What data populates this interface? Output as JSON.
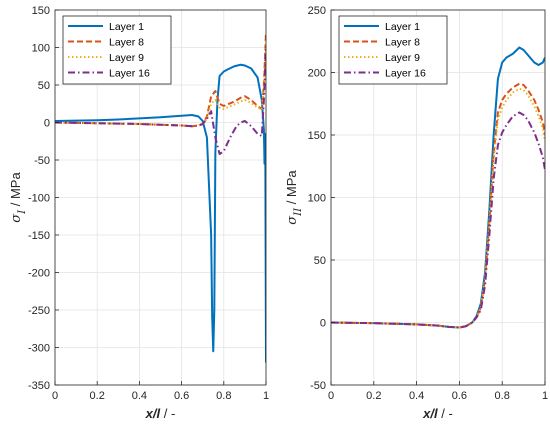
{
  "chart_data": [
    {
      "type": "line",
      "xlabel": "x/l / -",
      "ylabel": "σ_I / MPa",
      "xlim": [
        0,
        1
      ],
      "ylim": [
        -350,
        150
      ],
      "xticks": [
        0,
        0.2,
        0.4,
        0.6,
        0.8,
        1
      ],
      "yticks": [
        -350,
        -300,
        -250,
        -200,
        -150,
        -100,
        -50,
        0,
        50,
        100,
        150
      ],
      "grid": true,
      "legend_position": "top-left",
      "series": [
        {
          "name": "Layer 1",
          "color": "#0072bd",
          "style": "solid",
          "x": [
            0,
            0.1,
            0.2,
            0.3,
            0.4,
            0.5,
            0.6,
            0.65,
            0.68,
            0.7,
            0.72,
            0.74,
            0.745,
            0.75,
            0.755,
            0.76,
            0.77,
            0.78,
            0.8,
            0.82,
            0.85,
            0.88,
            0.9,
            0.93,
            0.96,
            0.98,
            0.99,
            0.993,
            0.995,
            0.997,
            1.0
          ],
          "y": [
            2,
            2.5,
            3,
            4,
            5.5,
            7,
            9,
            10,
            8,
            2,
            -20,
            -150,
            -260,
            -305,
            -250,
            -40,
            30,
            62,
            68,
            71,
            75,
            77,
            76,
            72,
            60,
            30,
            -10,
            -55,
            -15,
            -60,
            -320
          ]
        },
        {
          "name": "Layer 8",
          "color": "#d95319",
          "style": "dashed",
          "x": [
            0,
            0.1,
            0.2,
            0.3,
            0.4,
            0.5,
            0.6,
            0.65,
            0.68,
            0.7,
            0.72,
            0.74,
            0.76,
            0.78,
            0.8,
            0.85,
            0.88,
            0.9,
            0.93,
            0.96,
            0.98,
            0.99,
            1.0
          ],
          "y": [
            0,
            -0.5,
            -1,
            -1.5,
            -2,
            -3,
            -4,
            -5,
            -4,
            -2,
            8,
            35,
            42,
            25,
            22,
            28,
            33,
            35,
            30,
            22,
            18,
            50,
            120
          ]
        },
        {
          "name": "Layer 9",
          "color": "#edb120",
          "style": "dotted",
          "x": [
            0,
            0.1,
            0.2,
            0.3,
            0.4,
            0.5,
            0.6,
            0.65,
            0.68,
            0.7,
            0.72,
            0.74,
            0.76,
            0.78,
            0.8,
            0.85,
            0.88,
            0.9,
            0.93,
            0.96,
            0.98,
            0.99,
            1.0
          ],
          "y": [
            0,
            -0.5,
            -1,
            -1.5,
            -2,
            -3,
            -4,
            -5,
            -4,
            -2,
            5,
            25,
            30,
            20,
            18,
            24,
            28,
            30,
            26,
            20,
            17,
            45,
            110
          ]
        },
        {
          "name": "Layer 16",
          "color": "#7e2f8e",
          "style": "dashdot",
          "x": [
            0,
            0.1,
            0.2,
            0.3,
            0.4,
            0.5,
            0.6,
            0.65,
            0.68,
            0.7,
            0.72,
            0.74,
            0.76,
            0.78,
            0.8,
            0.83,
            0.86,
            0.88,
            0.9,
            0.93,
            0.96,
            0.98,
            0.99,
            1.0
          ],
          "y": [
            0,
            -0.5,
            -1,
            -1.5,
            -2,
            -3,
            -4,
            -5,
            -4,
            -2,
            5,
            15,
            -20,
            -42,
            -38,
            -20,
            -5,
            0,
            2,
            -5,
            -15,
            -18,
            30,
            100
          ]
        }
      ]
    },
    {
      "type": "line",
      "xlabel": "x/l / -",
      "ylabel": "σ_II / MPa",
      "xlim": [
        0,
        1
      ],
      "ylim": [
        -50,
        250
      ],
      "xticks": [
        0,
        0.2,
        0.4,
        0.6,
        0.8,
        1
      ],
      "yticks": [
        -50,
        0,
        50,
        100,
        150,
        200,
        250
      ],
      "grid": true,
      "legend_position": "top-left",
      "series": [
        {
          "name": "Layer 1",
          "color": "#0072bd",
          "style": "solid",
          "x": [
            0,
            0.1,
            0.2,
            0.3,
            0.4,
            0.5,
            0.55,
            0.6,
            0.63,
            0.66,
            0.68,
            0.7,
            0.72,
            0.74,
            0.76,
            0.78,
            0.8,
            0.82,
            0.85,
            0.88,
            0.9,
            0.92,
            0.95,
            0.97,
            0.99,
            1.0
          ],
          "y": [
            0,
            -0.3,
            -0.5,
            -1,
            -1.5,
            -2.5,
            -3.5,
            -4,
            -3,
            0,
            5,
            15,
            40,
            90,
            150,
            195,
            208,
            212,
            215,
            220,
            218,
            214,
            208,
            206,
            208,
            212
          ]
        },
        {
          "name": "Layer 8",
          "color": "#d95319",
          "style": "dashed",
          "x": [
            0,
            0.1,
            0.2,
            0.3,
            0.4,
            0.5,
            0.55,
            0.6,
            0.63,
            0.66,
            0.68,
            0.7,
            0.72,
            0.74,
            0.76,
            0.78,
            0.8,
            0.82,
            0.85,
            0.88,
            0.9,
            0.92,
            0.95,
            0.97,
            0.99,
            1.0
          ],
          "y": [
            0,
            -0.3,
            -0.5,
            -1,
            -1.5,
            -2.5,
            -3.5,
            -4,
            -3,
            0,
            4,
            12,
            35,
            80,
            135,
            168,
            178,
            183,
            188,
            191,
            190,
            186,
            178,
            170,
            160,
            150
          ]
        },
        {
          "name": "Layer 9",
          "color": "#edb120",
          "style": "dotted",
          "x": [
            0,
            0.1,
            0.2,
            0.3,
            0.4,
            0.5,
            0.55,
            0.6,
            0.63,
            0.66,
            0.68,
            0.7,
            0.72,
            0.74,
            0.76,
            0.78,
            0.8,
            0.82,
            0.85,
            0.88,
            0.9,
            0.92,
            0.95,
            0.97,
            0.99,
            1.0
          ],
          "y": [
            0,
            -0.3,
            -0.5,
            -1,
            -1.5,
            -2.5,
            -3.5,
            -4,
            -3,
            0,
            4,
            12,
            34,
            78,
            130,
            162,
            172,
            178,
            184,
            187,
            186,
            182,
            173,
            165,
            155,
            145
          ]
        },
        {
          "name": "Layer 16",
          "color": "#7e2f8e",
          "style": "dashdot",
          "x": [
            0,
            0.1,
            0.2,
            0.3,
            0.4,
            0.5,
            0.55,
            0.6,
            0.63,
            0.66,
            0.68,
            0.7,
            0.72,
            0.74,
            0.76,
            0.78,
            0.8,
            0.82,
            0.85,
            0.88,
            0.9,
            0.92,
            0.95,
            0.97,
            0.99,
            1.0
          ],
          "y": [
            0,
            -0.3,
            -0.5,
            -1,
            -1.5,
            -2.5,
            -3.5,
            -4,
            -3,
            0,
            4,
            10,
            30,
            70,
            115,
            142,
            152,
            158,
            165,
            168,
            166,
            162,
            152,
            143,
            132,
            122
          ]
        }
      ]
    }
  ]
}
